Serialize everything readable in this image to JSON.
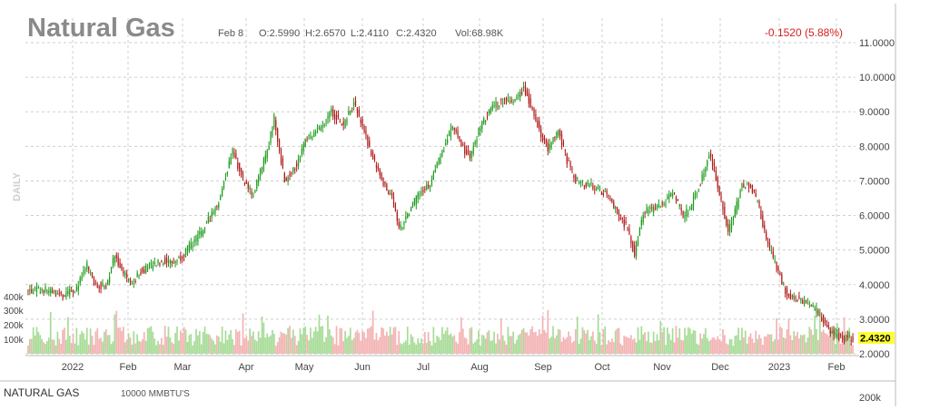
{
  "chart_data": {
    "type": "candlestick",
    "title": "Natural Gas",
    "header": {
      "date": "Feb 8",
      "open": "O:2.5990",
      "high": "H:2.6570",
      "low": "L:2.4110",
      "close": "C:2.4320",
      "volume": "Vol:68.98K",
      "change": "-0.1520 (5.88%)"
    },
    "y_ticks": [
      "11.0000",
      "10.0000",
      "9.0000",
      "8.0000",
      "7.0000",
      "6.0000",
      "5.0000",
      "4.0000",
      "3.0000",
      "2.0000"
    ],
    "y_range": [
      2,
      11
    ],
    "x_ticks": [
      "2022",
      "Feb",
      "Mar",
      "Apr",
      "May",
      "Jun",
      "Jul",
      "Aug",
      "Sep",
      "Oct",
      "Nov",
      "Dec",
      "2023",
      "Feb"
    ],
    "volume_ticks": [
      "400k",
      "300k",
      "200k",
      "100k"
    ],
    "volume_range": [
      0,
      420000
    ],
    "last_price": "2.4320",
    "side_label": "DAILY",
    "footer": {
      "name": "NATURAL GAS",
      "unit": "10000 MMBTU'S",
      "scale": "200k"
    },
    "close_path": [
      [
        0,
        3.8
      ],
      [
        10,
        3.85
      ],
      [
        20,
        3.65
      ],
      [
        28,
        3.9
      ],
      [
        34,
        4.55
      ],
      [
        38,
        4.0
      ],
      [
        45,
        3.95
      ],
      [
        50,
        4.9
      ],
      [
        54,
        4.4
      ],
      [
        60,
        4.0
      ],
      [
        65,
        4.4
      ],
      [
        72,
        4.55
      ],
      [
        78,
        4.7
      ],
      [
        84,
        4.65
      ],
      [
        90,
        4.9
      ],
      [
        100,
        5.5
      ],
      [
        110,
        6.4
      ],
      [
        118,
        7.9
      ],
      [
        124,
        7.0
      ],
      [
        130,
        6.6
      ],
      [
        138,
        7.9
      ],
      [
        142,
        8.8
      ],
      [
        148,
        7.0
      ],
      [
        155,
        7.5
      ],
      [
        160,
        8.2
      ],
      [
        168,
        8.5
      ],
      [
        175,
        9.0
      ],
      [
        182,
        8.6
      ],
      [
        188,
        9.3
      ],
      [
        194,
        8.4
      ],
      [
        200,
        7.5
      ],
      [
        205,
        6.9
      ],
      [
        210,
        6.6
      ],
      [
        214,
        5.6
      ],
      [
        218,
        5.9
      ],
      [
        225,
        6.6
      ],
      [
        232,
        6.9
      ],
      [
        238,
        7.7
      ],
      [
        245,
        8.6
      ],
      [
        250,
        8.0
      ],
      [
        255,
        7.7
      ],
      [
        262,
        8.7
      ],
      [
        268,
        9.1
      ],
      [
        275,
        9.4
      ],
      [
        280,
        9.3
      ],
      [
        286,
        9.7
      ],
      [
        290,
        9.2
      ],
      [
        295,
        8.5
      ],
      [
        300,
        7.9
      ],
      [
        306,
        8.5
      ],
      [
        311,
        7.6
      ],
      [
        316,
        7.0
      ],
      [
        322,
        6.9
      ],
      [
        328,
        6.8
      ],
      [
        334,
        6.6
      ],
      [
        340,
        6.1
      ],
      [
        346,
        5.6
      ],
      [
        350,
        4.9
      ],
      [
        355,
        6.1
      ],
      [
        362,
        6.2
      ],
      [
        368,
        6.4
      ],
      [
        372,
        6.7
      ],
      [
        378,
        6.0
      ],
      [
        382,
        6.2
      ],
      [
        387,
        6.8
      ],
      [
        393,
        7.8
      ],
      [
        396,
        7.3
      ],
      [
        400,
        6.4
      ],
      [
        404,
        5.5
      ],
      [
        408,
        6.1
      ],
      [
        412,
        6.9
      ],
      [
        417,
        6.8
      ],
      [
        421,
        6.4
      ],
      [
        426,
        5.3
      ],
      [
        432,
        4.5
      ],
      [
        438,
        3.7
      ],
      [
        444,
        3.6
      ],
      [
        450,
        3.4
      ],
      [
        456,
        3.2
      ],
      [
        462,
        2.7
      ],
      [
        468,
        2.5
      ],
      [
        473,
        2.45
      ],
      [
        476,
        2.43
      ]
    ]
  }
}
